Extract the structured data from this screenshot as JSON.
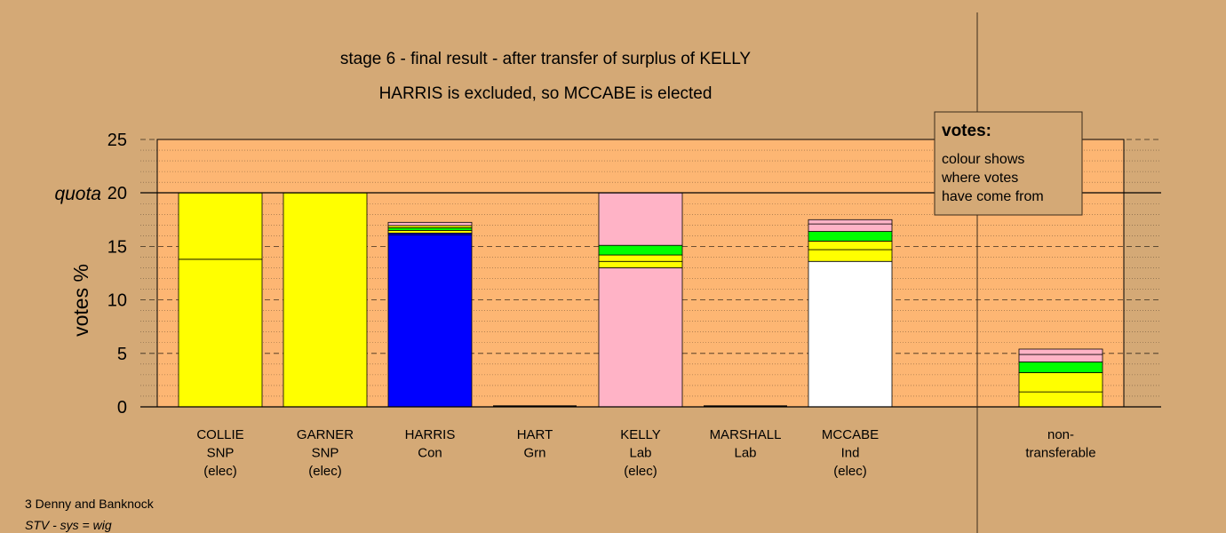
{
  "colors": {
    "background": "#d4a976",
    "plot_bg": "#fdb673",
    "SNP": "#ffff00",
    "Con": "#0000ff",
    "Lab": "#ffb3c6",
    "Ind": "#ffffff",
    "Grn": "#00ff00"
  },
  "chart_data": {
    "type": "bar",
    "stacked": true,
    "title": "stage 6 - final result - after transfer of surplus of KELLY",
    "subtitle": "HARRIS is excluded, so MCCABE is elected",
    "ylabel": "votes %",
    "ylim": [
      0,
      25
    ],
    "yticks": [
      0,
      5,
      10,
      15,
      20,
      25
    ],
    "quota": 20,
    "quota_label": "quota",
    "grid": true,
    "legend": {
      "position": "top-right",
      "title": "votes:",
      "lines": [
        "colour shows",
        "where votes",
        "have come from"
      ]
    },
    "categories": [
      {
        "lines": [
          "COLLIE",
          "SNP",
          "(elec)"
        ]
      },
      {
        "lines": [
          "GARNER",
          "SNP",
          "(elec)"
        ]
      },
      {
        "lines": [
          "HARRIS",
          "Con"
        ]
      },
      {
        "lines": [
          "HART",
          "Grn"
        ]
      },
      {
        "lines": [
          "KELLY",
          "Lab",
          "(elec)"
        ]
      },
      {
        "lines": [
          "MARSHALL",
          "Lab"
        ]
      },
      {
        "lines": [
          "MCCABE",
          "Ind",
          "(elec)"
        ]
      },
      {
        "lines": [
          "non-",
          "transferable"
        ]
      }
    ],
    "bars": [
      {
        "segments": [
          {
            "party": "SNP",
            "value": 13.8
          },
          {
            "party": "SNP",
            "value": 6.2
          }
        ]
      },
      {
        "segments": [
          {
            "party": "SNP",
            "value": 20.0
          }
        ]
      },
      {
        "segments": [
          {
            "party": "Con",
            "value": 16.1
          },
          {
            "party": "Con",
            "value": 0.15
          },
          {
            "party": "SNP",
            "value": 0.25
          },
          {
            "party": "Grn",
            "value": 0.25
          },
          {
            "party": "SNP",
            "value": 0.2
          },
          {
            "party": "Lab",
            "value": 0.3
          }
        ]
      },
      {
        "segments": []
      },
      {
        "segments": [
          {
            "party": "Lab",
            "value": 13.0
          },
          {
            "party": "SNP",
            "value": 0.6
          },
          {
            "party": "SNP",
            "value": 0.6
          },
          {
            "party": "Grn",
            "value": 0.9
          },
          {
            "party": "Lab",
            "value": 4.9
          }
        ]
      },
      {
        "segments": []
      },
      {
        "segments": [
          {
            "party": "Ind",
            "value": 13.6
          },
          {
            "party": "SNP",
            "value": 1.1
          },
          {
            "party": "SNP",
            "value": 0.8
          },
          {
            "party": "Grn",
            "value": 0.9
          },
          {
            "party": "Lab",
            "value": 0.7
          },
          {
            "party": "Lab",
            "value": 0.4
          }
        ]
      },
      {
        "segments": [
          {
            "party": "SNP",
            "value": 1.4
          },
          {
            "party": "SNP",
            "value": 1.8
          },
          {
            "party": "Grn",
            "value": 1.0
          },
          {
            "party": "Lab",
            "value": 0.7
          },
          {
            "party": "Lab",
            "value": 0.5
          }
        ]
      }
    ]
  },
  "footer": {
    "ward": "3 Denny and Banknock",
    "system": "STV - sys = wig"
  }
}
